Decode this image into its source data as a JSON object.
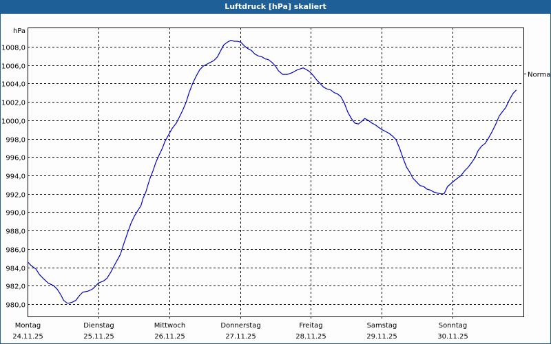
{
  "window": {
    "title": "Luftdruck [hPa] skaliert",
    "title_bg": "#1d5f96"
  },
  "chart_data": {
    "type": "line",
    "title": "Luftdruck [hPa] skaliert",
    "xlabel": "",
    "ylabel": "hPa",
    "ylim": [
      978.6,
      1009.8
    ],
    "yticks": [
      "1008,0",
      "1006,0",
      "1004,0",
      "1002,0",
      "1000,0",
      "998,0",
      "996,0",
      "994,0",
      "992,0",
      "990,0",
      "988,0",
      "986,0",
      "984,0",
      "982,0",
      "980,0"
    ],
    "ytick_values": [
      1008,
      1006,
      1004,
      1002,
      1000,
      998,
      996,
      994,
      992,
      990,
      988,
      986,
      984,
      982,
      980
    ],
    "grid": true,
    "line_color": "#0000c8",
    "categories": [
      {
        "day": "Montag",
        "date": "24.11.25"
      },
      {
        "day": "Dienstag",
        "date": "25.11.25"
      },
      {
        "day": "Mittwoch",
        "date": "26.11.25"
      },
      {
        "day": "Donnerstag",
        "date": "27.11.25"
      },
      {
        "day": "Freitag",
        "date": "28.11.25"
      },
      {
        "day": "Samstag",
        "date": "29.11.25"
      },
      {
        "day": "Sonntag",
        "date": "30.11.25"
      }
    ],
    "annotation": {
      "label": "Normal",
      "value": 1005.0
    },
    "series": [
      {
        "name": "Luftdruck",
        "x_days": [
          0.0,
          0.05,
          0.12,
          0.17,
          0.22,
          0.29,
          0.37,
          0.42,
          0.47,
          0.51,
          0.56,
          0.58,
          0.63,
          0.68,
          0.73,
          0.78,
          0.85,
          0.91,
          0.94,
          1.0,
          1.07,
          1.12,
          1.17,
          1.21,
          1.26,
          1.31,
          1.36,
          1.41,
          1.46,
          1.51,
          1.55,
          1.6,
          1.63,
          1.67,
          1.7,
          1.73,
          1.77,
          1.81,
          1.85,
          1.9,
          1.94,
          1.99,
          2.04,
          2.1,
          2.14,
          2.19,
          2.24,
          2.28,
          2.33,
          2.38,
          2.43,
          2.48,
          2.53,
          2.58,
          2.63,
          2.68,
          2.72,
          2.77,
          2.82,
          2.87,
          2.92,
          2.96,
          3.01,
          3.06,
          3.11,
          3.16,
          3.21,
          3.26,
          3.31,
          3.35,
          3.4,
          3.45,
          3.5,
          3.54,
          3.6,
          3.67,
          3.74,
          3.81,
          3.89,
          3.94,
          3.98,
          4.03,
          4.08,
          4.13,
          4.18,
          4.23,
          4.28,
          4.33,
          4.37,
          4.42,
          4.47,
          4.52,
          4.57,
          4.62,
          4.67,
          4.72,
          4.76,
          4.81,
          4.86,
          4.91,
          4.96,
          5.0,
          5.05,
          5.1,
          5.15,
          5.2,
          5.25,
          5.3,
          5.35,
          5.4,
          5.44,
          5.49,
          5.54,
          5.59,
          5.64,
          5.69,
          5.73,
          5.78,
          5.83,
          5.88,
          5.93,
          6.02,
          6.07,
          6.12,
          6.17,
          6.22,
          6.27,
          6.32,
          6.36,
          6.41,
          6.46,
          6.51,
          6.56,
          6.61,
          6.66,
          6.71,
          6.75,
          6.8,
          6.85,
          6.9,
          6.95
        ],
        "values": [
          984.6,
          984.2,
          983.8,
          983.2,
          982.8,
          982.3,
          982.0,
          981.6,
          981.0,
          980.4,
          980.1,
          980.1,
          980.2,
          980.4,
          980.9,
          981.3,
          981.4,
          981.6,
          981.8,
          982.3,
          982.5,
          982.8,
          983.4,
          984.0,
          984.7,
          985.4,
          986.6,
          987.7,
          988.8,
          989.6,
          990.1,
          990.7,
          991.5,
          992.2,
          993.0,
          993.7,
          994.5,
          995.4,
          996.1,
          996.9,
          997.7,
          998.4,
          999.1,
          999.7,
          1000.3,
          1001.1,
          1002.0,
          1003.0,
          1004.0,
          1004.8,
          1005.5,
          1005.9,
          1006.1,
          1006.3,
          1006.5,
          1006.9,
          1007.5,
          1008.2,
          1008.5,
          1008.7,
          1008.6,
          1008.6,
          1008.5,
          1008.1,
          1007.8,
          1007.6,
          1007.2,
          1007.0,
          1006.9,
          1006.7,
          1006.6,
          1006.3,
          1005.9,
          1005.4,
          1005.0,
          1005.0,
          1005.2,
          1005.5,
          1005.7,
          1005.5,
          1005.3,
          1004.9,
          1004.4,
          1004.0,
          1003.6,
          1003.4,
          1003.3,
          1003.0,
          1002.9,
          1002.6,
          1001.9,
          1000.9,
          1000.2,
          999.7,
          999.6,
          999.9,
          1000.2,
          1000.0,
          999.7,
          999.5,
          999.2,
          999.0,
          998.8,
          998.6,
          998.3,
          997.9,
          997.0,
          995.9,
          994.9,
          994.3,
          993.7,
          993.3,
          992.9,
          992.8,
          992.5,
          992.4,
          992.2,
          992.1,
          992.0,
          992.0,
          992.8,
          993.4,
          993.7,
          994.0,
          994.5,
          994.9,
          995.4,
          996.0,
          996.7,
          997.2,
          997.5,
          998.1,
          998.8,
          999.6,
          1000.5,
          1001.0,
          1001.4,
          1002.2,
          1002.9,
          1003.3
        ]
      }
    ]
  }
}
